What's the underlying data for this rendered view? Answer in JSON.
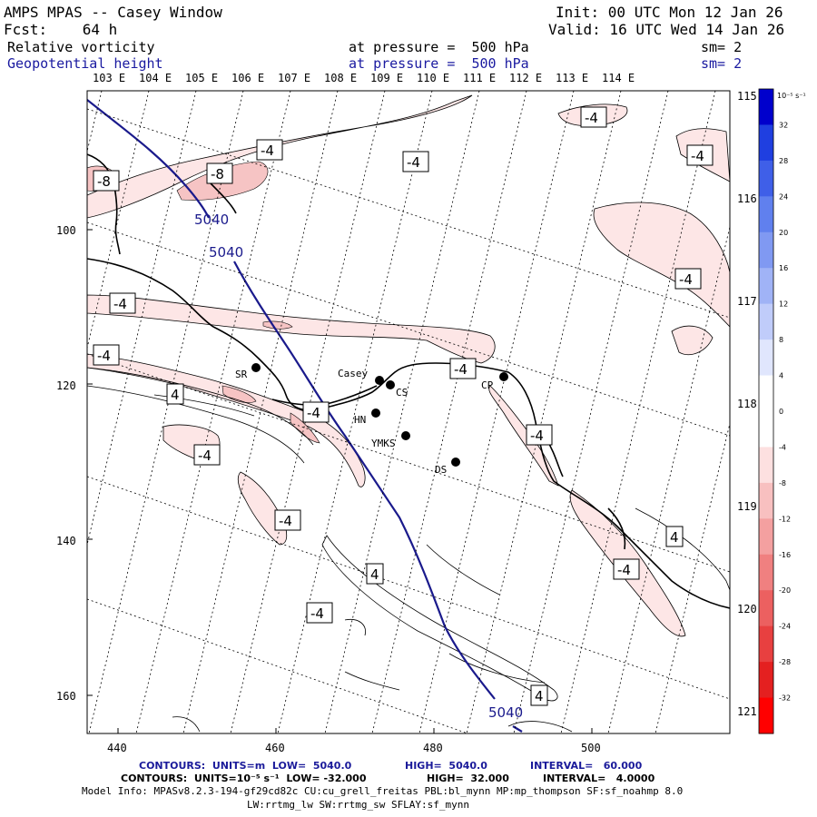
{
  "header": {
    "line1_left": "AMPS MPAS -- Casey Window",
    "line1_right": "Init: 00 UTC Mon 12 Jan 26",
    "line2_left": "Fcst:    64 h",
    "line2_right": "Valid: 16 UTC Wed 14 Jan 26",
    "field1_name": "Relative vorticity",
    "field1_level": "at pressure =  500 hPa",
    "field1_sm": "sm= 2",
    "field2_name": "Geopotential height",
    "field2_level": "at pressure =  500 hPa",
    "field2_sm": "sm= 2"
  },
  "colors": {
    "contour_blue": "#1a1a8c",
    "neg_fill_light": "#fde6e6",
    "neg_fill_med": "#f8c8c8"
  },
  "axes": {
    "top_lon_labels": [
      "103 E",
      "104 E",
      "105 E",
      "106 E",
      "107 E",
      "108 E",
      "109 E",
      "110 E",
      "111 E",
      "112 E",
      "113 E",
      "114 E"
    ],
    "right_lon_labels": [
      "115 E",
      "116 E",
      "117 E",
      "118 E",
      "119 E",
      "120 E",
      "121 E"
    ],
    "x_ticks": [
      "440",
      "460",
      "480",
      "500"
    ],
    "y_ticks": [
      "100",
      "120",
      "140",
      "160"
    ]
  },
  "colorbar": {
    "unit_label": "10⁻⁵ s⁻¹",
    "levels": [
      "32",
      "28",
      "24",
      "20",
      "16",
      "12",
      "8",
      "4",
      "0",
      "-4",
      "-8",
      "-12",
      "-16",
      "-20",
      "-24",
      "-28",
      "-32"
    ],
    "colors": [
      "#0000cc",
      "#1f3fe0",
      "#3f5fe8",
      "#6080ee",
      "#8099f2",
      "#a0b3f6",
      "#c0ccfa",
      "#e0e6fd",
      "#ffffff",
      "#ffffff",
      "#fde0e0",
      "#f8c0c0",
      "#f4a0a0",
      "#f08080",
      "#ec6060",
      "#e84040",
      "#e42020",
      "#ff0000"
    ]
  },
  "stations": [
    {
      "name": "Casey"
    },
    {
      "name": "CS"
    },
    {
      "name": "CP"
    },
    {
      "name": "SR"
    },
    {
      "name": "HN"
    },
    {
      "name": "YMKS"
    },
    {
      "name": "DS"
    }
  ],
  "contour_labels": {
    "height": [
      "5040",
      "5040",
      "5040"
    ],
    "vorticity": [
      "-4",
      "-4",
      "-8",
      "-8",
      "-4",
      "-4",
      "-4",
      "-4",
      "-4",
      "4",
      "-4",
      "-4",
      "-4",
      "-4",
      "-4",
      "4",
      "-4",
      "4",
      "-4",
      "4"
    ]
  },
  "footer": {
    "line1_a": "CONTOURS:  UNITS=m  LOW=  5040.0",
    "line1_b": "HIGH=  5040.0",
    "line1_c": "INTERVAL=   60.000",
    "line2_a": "CONTOURS:  UNITS=10⁻⁵ s⁻¹  LOW= -32.000",
    "line2_b": "HIGH=  32.000",
    "line2_c": "INTERVAL=   4.0000",
    "line3": "Model Info: MPASv8.2.3-194-gf29cd82c CU:cu_grell_freitas PBL:bl_mynn MP:mp_thompson SF:sf_noahmp 8.0",
    "line4": "LW:rrtmg_lw SW:rrtmg_sw SFLAY:sf_mynn"
  }
}
